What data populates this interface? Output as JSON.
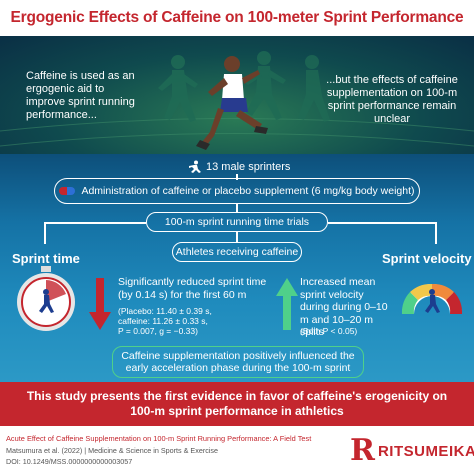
{
  "header": {
    "title": "Ergogenic Effects of Caffeine on 100-meter Sprint Performance"
  },
  "hero": {
    "left_text": "Caffeine is used as an ergogenic aid to improve sprint running performance...",
    "right_text": "...but the effects of caffeine supplementation on 100-m sprint performance remain unclear"
  },
  "flow": {
    "participants": "13 male sprinters",
    "administration": "Administration of caffeine or placebo supplement (6 mg/kg body weight)",
    "trials": "100-m sprint running time trials",
    "athletes": "Athletes receiving caffeine"
  },
  "sprint_time": {
    "label": "Sprint time",
    "finding": "Significantly reduced sprint time (by 0.14 s) for the first 60 m",
    "stats_placebo": "(Placebo: 11.40 ± 0.39 s,",
    "stats_caffeine": "caffeine: 11.26 ± 0.33 s,",
    "stats_p": "P = 0.007, g = −0.33)"
  },
  "sprint_velocity": {
    "label": "Sprint velocity",
    "finding": "Increased mean sprint velocity during during 0–10 m and 10–20 m splits",
    "stats": "(Both P < 0.05)"
  },
  "conclusion_box": "Caffeine supplementation positively influenced the early acceleration phase during the 100-m sprint",
  "banner": "This study presents the first evidence in favor of caffeine's erogenicity on 100-m sprint performance in athletics",
  "footer": {
    "ref_title": "Acute Effect of Caffeine Supplementation on 100-m Sprint Running Performance: A Field Test",
    "ref_authors": "Matsumura et al. (2022) | Medicine & Science in Sports & Exercise",
    "ref_doi": "DOI: 10.1249/MSS.0000000000003057",
    "brand_letter": "R",
    "brand_name": "RITSUMEIKAN"
  },
  "colors": {
    "accent": "#c4262e",
    "blue_top": "#0d4f7a",
    "blue_bottom": "#2c99c6",
    "green_arrow": "#4fd08a"
  }
}
